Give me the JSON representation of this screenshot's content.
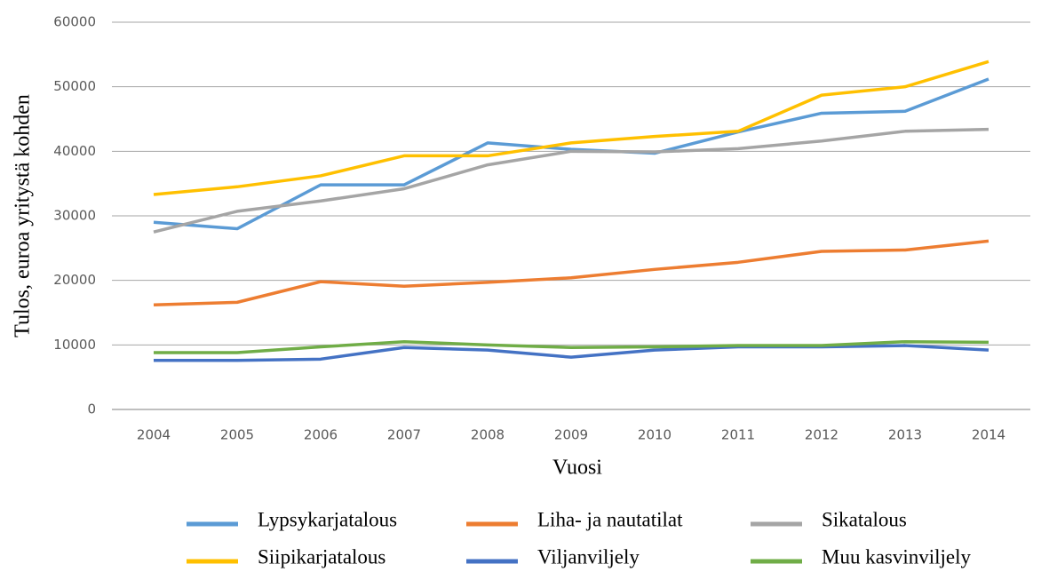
{
  "chart_data": {
    "type": "line",
    "x_label": "Vuosi",
    "y_label": "Tulos, euroa yritystä kohden",
    "categories": [
      "2004",
      "2005",
      "2006",
      "2007",
      "2008",
      "2009",
      "2010",
      "2011",
      "2012",
      "2013",
      "2014"
    ],
    "series": [
      {
        "name": "Lypsykarjatalous",
        "color": "#5b9bd5",
        "values": [
          29000,
          28000,
          34800,
          34800,
          41300,
          40300,
          39700,
          43000,
          45900,
          46200,
          51200
        ]
      },
      {
        "name": "Liha- ja nautatilat",
        "color": "#ed7d31",
        "values": [
          16200,
          16600,
          19800,
          19100,
          19700,
          20400,
          21700,
          22800,
          24500,
          24700,
          26100
        ]
      },
      {
        "name": "Sikatalous",
        "color": "#a5a5a5",
        "values": [
          27500,
          30700,
          32300,
          34200,
          37900,
          40000,
          39900,
          40400,
          41600,
          43100,
          43400
        ]
      },
      {
        "name": "Siipikarjatalous",
        "color": "#ffc000",
        "values": [
          33300,
          34500,
          36200,
          39300,
          39300,
          41300,
          42300,
          43100,
          48700,
          50000,
          53900
        ]
      },
      {
        "name": "Viljanviljely",
        "color": "#4472c4",
        "values": [
          7600,
          7600,
          7800,
          9600,
          9200,
          8100,
          9200,
          9700,
          9700,
          9900,
          9200
        ]
      },
      {
        "name": "Muu kasvinviljely",
        "color": "#70ad47",
        "values": [
          8800,
          8800,
          9700,
          10500,
          10000,
          9600,
          9700,
          9900,
          9900,
          10500,
          10400
        ]
      }
    ],
    "ylim": [
      0,
      60000
    ],
    "yticks": [
      0,
      10000,
      20000,
      30000,
      40000,
      50000,
      60000
    ],
    "grid": true,
    "legend": "bottom"
  }
}
